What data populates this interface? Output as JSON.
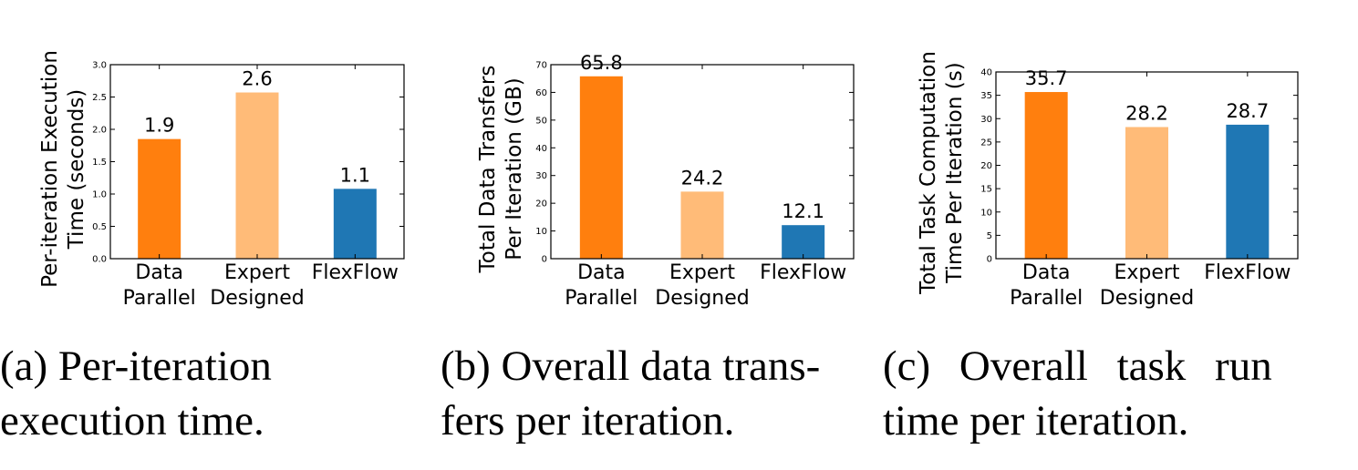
{
  "colors": {
    "data_parallel": "#ff7f0e",
    "expert_designed": "#ffbb78",
    "flexflow": "#1f77b4"
  },
  "chart_data": [
    {
      "type": "bar",
      "categories": [
        "Data\nParallel",
        "Expert\nDesigned",
        "FlexFlow"
      ],
      "values": [
        1.85,
        2.57,
        1.08
      ],
      "data_labels": [
        "1.9",
        "2.6",
        "1.1"
      ],
      "title": "",
      "xlabel": "",
      "ylabel": "Per-iteration Execution\nTime (seconds)",
      "ylim": [
        0,
        3.0
      ],
      "yticks": [
        "0.0",
        "0.5",
        "1.0",
        "1.5",
        "2.0",
        "2.5",
        "3.0"
      ],
      "grid": false,
      "caption": [
        "(a) Per-iteration",
        "execution time."
      ]
    },
    {
      "type": "bar",
      "categories": [
        "Data\nParallel",
        "Expert\nDesigned",
        "FlexFlow"
      ],
      "values": [
        65.8,
        24.2,
        12.1
      ],
      "data_labels": [
        "65.8",
        "24.2",
        "12.1"
      ],
      "title": "",
      "xlabel": "",
      "ylabel": "Total Data Transfers\nPer Iteration (GB)",
      "ylim": [
        0,
        70
      ],
      "yticks": [
        "0",
        "10",
        "20",
        "30",
        "40",
        "50",
        "60",
        "70"
      ],
      "grid": false,
      "caption": [
        "(b) Overall data trans-",
        "fers per iteration."
      ]
    },
    {
      "type": "bar",
      "categories": [
        "Data\nParallel",
        "Expert\nDesigned",
        "FlexFlow"
      ],
      "values": [
        35.7,
        28.2,
        28.7
      ],
      "data_labels": [
        "35.7",
        "28.2",
        "28.7"
      ],
      "title": "",
      "xlabel": "",
      "ylabel": "Total Task Computation\nTime Per Iteration (s)",
      "ylim": [
        0,
        40
      ],
      "yticks": [
        "0",
        "5",
        "10",
        "15",
        "20",
        "25",
        "30",
        "35",
        "40"
      ],
      "grid": false,
      "caption": [
        "(c)  Overall  task  run",
        "time per iteration."
      ]
    }
  ]
}
